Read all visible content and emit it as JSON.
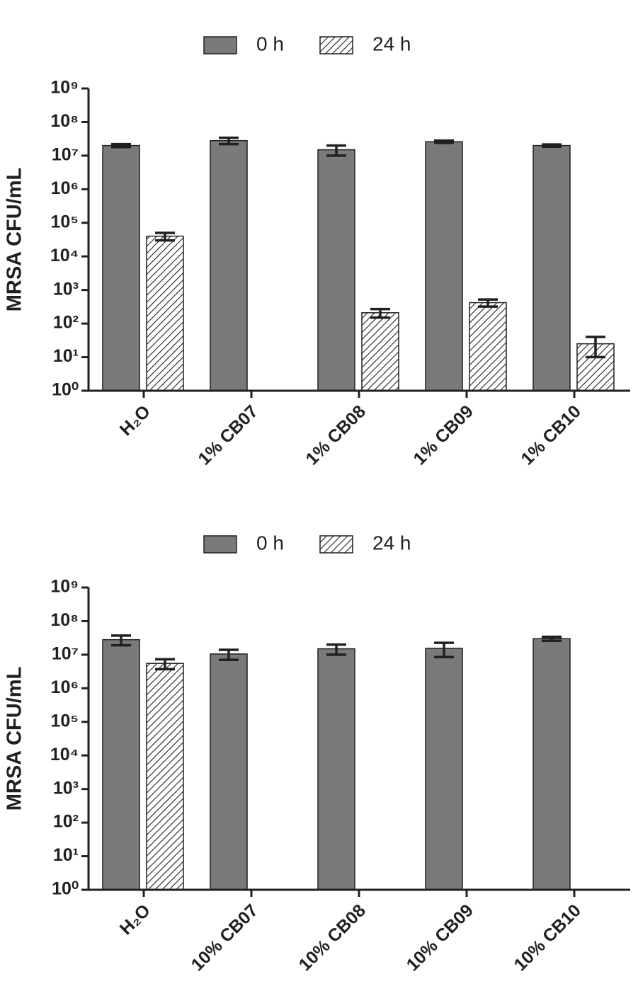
{
  "chart_data": [
    {
      "type": "bar",
      "yscale": "log",
      "ylabel": "MRSA CFU/mL",
      "legend": "top",
      "categories": [
        "H₂O",
        "1% CB07",
        "1% CB08",
        "1% CB09",
        "1% CB10"
      ],
      "series": [
        {
          "name": "0 h",
          "color": "#7a7a7c",
          "values": [
            20000000,
            28000000,
            15000000,
            26000000,
            20000000
          ],
          "errors": [
            2000000,
            6000000,
            5000000,
            2000000,
            1500000
          ]
        },
        {
          "name": "24 h",
          "color": "#ffffff",
          "hatch": true,
          "values": [
            40000,
            null,
            210,
            420,
            25
          ],
          "errors": [
            10000,
            null,
            60,
            100,
            15
          ]
        }
      ],
      "ylim": [
        1,
        1000000000
      ],
      "yticks": [
        {
          "value": 1,
          "label": "10⁰"
        },
        {
          "value": 10,
          "label": "10¹"
        },
        {
          "value": 100,
          "label": "10²"
        },
        {
          "value": 1000,
          "label": "10³"
        },
        {
          "value": 10000,
          "label": "10⁴"
        },
        {
          "value": 100000,
          "label": "10⁵"
        },
        {
          "value": 1000000,
          "label": "10⁶"
        },
        {
          "value": 10000000,
          "label": "10⁷"
        },
        {
          "value": 100000000,
          "label": "10⁸"
        },
        {
          "value": 1000000000,
          "label": "10⁹"
        }
      ]
    },
    {
      "type": "bar",
      "yscale": "log",
      "ylabel": "MRSA CFU/mL",
      "legend": "top",
      "categories": [
        "H₂O",
        "10% CB07",
        "10% CB08",
        "10% CB09",
        "10% CB10"
      ],
      "series": [
        {
          "name": "0 h",
          "color": "#7a7a7c",
          "values": [
            28000000,
            10500000,
            15000000,
            15500000,
            30000000
          ],
          "errors": [
            9000000,
            3500000,
            5000000,
            7000000,
            4000000
          ]
        },
        {
          "name": "24 h",
          "color": "#ffffff",
          "hatch": true,
          "values": [
            5500000,
            null,
            null,
            null,
            null
          ],
          "errors": [
            1800000,
            null,
            null,
            null,
            null
          ]
        }
      ],
      "ylim": [
        1,
        1000000000
      ],
      "yticks": [
        {
          "value": 1,
          "label": "10⁰"
        },
        {
          "value": 10,
          "label": "10¹"
        },
        {
          "value": 100,
          "label": "10²"
        },
        {
          "value": 1000,
          "label": "10³"
        },
        {
          "value": 10000,
          "label": "10⁴"
        },
        {
          "value": 100000,
          "label": "10⁵"
        },
        {
          "value": 1000000,
          "label": "10⁶"
        },
        {
          "value": 10000000,
          "label": "10⁷"
        },
        {
          "value": 100000000,
          "label": "10⁸"
        },
        {
          "value": 1000000000,
          "label": "10⁹"
        }
      ]
    }
  ]
}
